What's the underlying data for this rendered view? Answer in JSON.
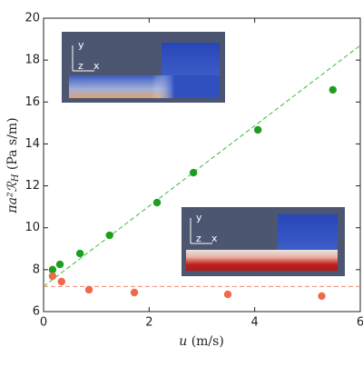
{
  "chart_data": {
    "type": "scatter",
    "xlabel": {
      "var": "u",
      "unit": "(m/s)"
    },
    "ylabel": {
      "main": "πa²ℛ",
      "sub": "H",
      "unit": "(Pa s/m)"
    },
    "xlim": [
      0,
      6
    ],
    "xticks": [
      0,
      2,
      4,
      6
    ],
    "ylim": [
      6,
      20
    ],
    "yticks": [
      6,
      8,
      10,
      12,
      14,
      16,
      18,
      20
    ],
    "series": [
      {
        "color": "#1e9e1e",
        "x": [
          0.17,
          0.31,
          0.69,
          1.25,
          2.15,
          2.84,
          4.06,
          5.48
        ],
        "values": [
          8.0,
          8.25,
          8.77,
          9.64,
          11.2,
          12.63,
          14.67,
          16.58
        ]
      },
      {
        "color": "#ee6a4a",
        "x": [
          0.17,
          0.34,
          0.86,
          1.72,
          3.49,
          5.27
        ],
        "values": [
          7.69,
          7.43,
          7.04,
          6.91,
          6.82,
          6.74
        ]
      }
    ],
    "lines": [
      {
        "color": "#3cb83c",
        "x": [
          0,
          6
        ],
        "values": [
          7.2,
          18.7
        ],
        "dash": true
      },
      {
        "color": "#f08a70",
        "x": [
          0,
          6
        ],
        "values": [
          7.2,
          7.2
        ],
        "dash": true
      }
    ],
    "insets": [
      {
        "axes": [
          "y",
          "z",
          "x"
        ]
      },
      {
        "axes": [
          "y",
          "z",
          "x"
        ]
      }
    ]
  }
}
